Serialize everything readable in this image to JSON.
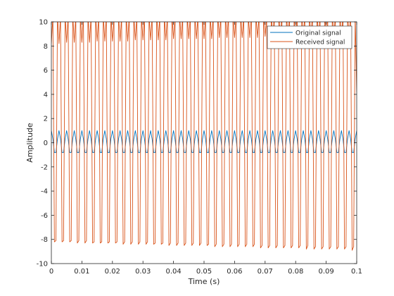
{
  "chart_data": {
    "type": "line",
    "title": "",
    "xlabel": "Time (s)",
    "ylabel": "Amplitude",
    "xlim": [
      0,
      0.1
    ],
    "ylim": [
      -10,
      10
    ],
    "xticks": [
      "0",
      "0.01",
      "0.02",
      "0.03",
      "0.04",
      "0.05",
      "0.06",
      "0.07",
      "0.08",
      "0.09",
      "0.1"
    ],
    "yticks": [
      "-10",
      "-8",
      "-6",
      "-4",
      "-2",
      "0",
      "2",
      "4",
      "6",
      "8",
      "10"
    ],
    "grid": false,
    "legend_position": "top-right",
    "x": [
      0,
      0.0005,
      0.001,
      0.0015,
      0.002,
      0.0025,
      0.003,
      0.0035,
      0.004,
      0.0045,
      0.005,
      0.0055,
      0.006,
      0.0065,
      0.007,
      0.0075,
      0.008,
      0.0085,
      0.009,
      0.0095,
      0.01,
      0.0105,
      0.011,
      0.0115,
      0.012,
      0.0125,
      0.013,
      0.0135,
      0.014,
      0.0145,
      0.015,
      0.0155,
      0.016,
      0.0165,
      0.017,
      0.0175,
      0.018,
      0.0185,
      0.019,
      0.0195,
      0.02,
      0.0205,
      0.021,
      0.0215,
      0.022,
      0.0225,
      0.023,
      0.0235,
      0.024,
      0.0245,
      0.025,
      0.0255,
      0.026,
      0.0265,
      0.027,
      0.0275,
      0.028,
      0.0285,
      0.029,
      0.0295,
      0.03,
      0.0305,
      0.031,
      0.0315,
      0.032,
      0.0325,
      0.033,
      0.0335,
      0.034,
      0.0345,
      0.035,
      0.0355,
      0.036,
      0.0365,
      0.037,
      0.0375,
      0.038,
      0.0385,
      0.039,
      0.0395,
      0.04,
      0.0405,
      0.041,
      0.0415,
      0.042,
      0.0425,
      0.043,
      0.0435,
      0.044,
      0.0445,
      0.045,
      0.0455,
      0.046,
      0.0465,
      0.047,
      0.0475,
      0.048,
      0.0485,
      0.049,
      0.0495,
      0.05,
      0.0505,
      0.051,
      0.0515,
      0.052,
      0.0525,
      0.053,
      0.0535,
      0.054,
      0.0545,
      0.055,
      0.0555,
      0.056,
      0.0565,
      0.057,
      0.0575,
      0.058,
      0.0585,
      0.059,
      0.0595,
      0.06,
      0.0605,
      0.061,
      0.0615,
      0.062,
      0.0625,
      0.063,
      0.0635,
      0.064,
      0.0645,
      0.065,
      0.0655,
      0.066,
      0.0665,
      0.067,
      0.0675,
      0.068,
      0.0685,
      0.069,
      0.0695,
      0.07,
      0.0705,
      0.071,
      0.0715,
      0.072,
      0.0725,
      0.073,
      0.0735,
      0.074,
      0.0745,
      0.075,
      0.0755,
      0.076,
      0.0765,
      0.077,
      0.0775,
      0.078,
      0.0785,
      0.079,
      0.0795,
      0.08,
      0.0805,
      0.081,
      0.0815,
      0.082,
      0.0825,
      0.083,
      0.0835,
      0.084,
      0.0845,
      0.085,
      0.0855,
      0.086,
      0.0865,
      0.087,
      0.0875,
      0.088,
      0.0885,
      0.089,
      0.0895,
      0.09,
      0.0905,
      0.091,
      0.0915,
      0.092,
      0.0925,
      0.093,
      0.0935,
      0.094,
      0.0945,
      0.095,
      0.0955,
      0.096,
      0.0965,
      0.097,
      0.0975,
      0.098,
      0.0985,
      0.099,
      0.0995,
      0.1
    ],
    "series": [
      {
        "name": "Original signal",
        "color": "#0072BD",
        "y": [
          1,
          0.31,
          -0.81,
          -0.81,
          0.31,
          1,
          0.31,
          -0.81,
          -0.81,
          0.31,
          1,
          0.31,
          -0.81,
          -0.81,
          0.31,
          1,
          0.31,
          -0.81,
          -0.81,
          0.31,
          1,
          0.31,
          -0.81,
          -0.81,
          0.31,
          1,
          0.31,
          -0.81,
          -0.81,
          0.31,
          1,
          0.31,
          -0.81,
          -0.81,
          0.31,
          1,
          0.31,
          -0.81,
          -0.81,
          0.31,
          1,
          0.31,
          -0.81,
          -0.81,
          0.31,
          1,
          0.31,
          -0.81,
          -0.81,
          0.31,
          1,
          0.31,
          -0.81,
          -0.81,
          0.31,
          1,
          0.31,
          -0.81,
          -0.81,
          0.31,
          1,
          0.31,
          -0.81,
          -0.81,
          0.31,
          1,
          0.31,
          -0.81,
          -0.81,
          0.31,
          1,
          0.31,
          -0.81,
          -0.81,
          0.31,
          1,
          0.31,
          -0.81,
          -0.81,
          0.31,
          1,
          0.31,
          -0.81,
          -0.81,
          0.31,
          1,
          0.31,
          -0.81,
          -0.81,
          0.31,
          1,
          0.31,
          -0.81,
          -0.81,
          0.31,
          1,
          0.31,
          -0.81,
          -0.81,
          0.31,
          1,
          0.31,
          -0.81,
          -0.81,
          0.31,
          1,
          0.31,
          -0.81,
          -0.81,
          0.31,
          1,
          0.31,
          -0.81,
          -0.81,
          0.31,
          1,
          0.31,
          -0.81,
          -0.81,
          0.31,
          1,
          0.31,
          -0.81,
          -0.81,
          0.31,
          1,
          0.31,
          -0.81,
          -0.81,
          0.31,
          1,
          0.31,
          -0.81,
          -0.81,
          0.31,
          1,
          0.31,
          -0.81,
          -0.81,
          0.31,
          1,
          0.31,
          -0.81,
          -0.81,
          0.31,
          1,
          0.31,
          -0.81,
          -0.81,
          0.31,
          1,
          0.31,
          -0.81,
          -0.81,
          0.31,
          1,
          0.31,
          -0.81,
          -0.81,
          0.31,
          1,
          0.31,
          -0.81,
          -0.81,
          0.31,
          1,
          0.31,
          -0.81,
          -0.81,
          0.31,
          1,
          0.31,
          -0.81,
          -0.81,
          0.31,
          1,
          0.31,
          -0.81,
          -0.81,
          0.31,
          1,
          0.31,
          -0.81,
          -0.81,
          0.31,
          1,
          0.31,
          -0.81,
          -0.81,
          0.31,
          1,
          0.31,
          -0.81,
          -0.81,
          0.31,
          1,
          0.31,
          -0.81,
          -0.81,
          0.31,
          1
        ]
      },
      {
        "name": "Received signal",
        "color": "#D95319",
        "y": [
          8.2,
          10.5,
          -8.2,
          -8.1,
          10.6,
          8.2,
          10.5,
          -8.2,
          -8.1,
          10.6,
          8.3,
          10.5,
          -8.2,
          -8.1,
          10.6,
          8.3,
          10.5,
          -8.3,
          -8.1,
          10.6,
          8.3,
          10.5,
          -8.3,
          -8.1,
          10.6,
          8.3,
          10.5,
          -8.3,
          -8.2,
          10.6,
          8.4,
          10.5,
          -8.3,
          -8.2,
          10.6,
          8.4,
          10.5,
          -8.3,
          -8.2,
          10.6,
          8.4,
          10.5,
          -8.3,
          -8.2,
          10.6,
          8.4,
          10.5,
          -8.4,
          -8.2,
          10.6,
          8.4,
          10.5,
          -8.4,
          -8.2,
          10.6,
          8.5,
          10.5,
          -8.4,
          -8.2,
          10.6,
          8.5,
          10.5,
          -8.4,
          -8.2,
          10.6,
          8.5,
          10.5,
          -8.4,
          -8.3,
          10.6,
          8.5,
          10.5,
          -8.4,
          -8.3,
          10.6,
          8.5,
          10.5,
          -8.5,
          -8.3,
          10.6,
          8.6,
          10.5,
          -8.5,
          -8.3,
          10.6,
          8.6,
          10.5,
          -8.5,
          -8.3,
          10.6,
          8.6,
          10.5,
          -8.5,
          -8.3,
          10.6,
          8.6,
          10.5,
          -8.5,
          -8.3,
          10.6,
          8.6,
          10.5,
          -8.5,
          -8.4,
          10.6,
          8.6,
          10.5,
          -8.6,
          -8.4,
          10.6,
          8.7,
          10.5,
          -8.6,
          -8.4,
          10.6,
          8.7,
          10.5,
          -8.6,
          -8.4,
          10.6,
          8.7,
          10.5,
          -8.6,
          -8.4,
          10.6,
          8.7,
          10.5,
          -8.6,
          -8.4,
          10.6,
          8.7,
          10.5,
          -8.6,
          -8.4,
          10.6,
          8.7,
          10.5,
          -8.7,
          -8.5,
          10.6,
          8.8,
          10.5,
          -8.7,
          -8.5,
          10.6,
          8.8,
          10.5,
          -8.7,
          -8.5,
          10.6,
          8.8,
          10.5,
          -8.7,
          -8.5,
          10.6,
          8.8,
          10.5,
          -8.7,
          -8.5,
          10.6,
          8.8,
          10.5,
          -8.7,
          -8.5,
          10.6,
          8.9,
          10.5,
          -8.8,
          -8.5,
          10.6,
          8.9,
          10.5,
          -8.8,
          -8.6,
          10.6,
          8.9,
          10.5,
          -8.8,
          -8.6,
          10.6,
          8.9,
          10.5,
          -8.8,
          -8.6,
          10.6,
          8.9,
          10.5,
          -8.8,
          -8.6,
          10.6,
          8.9,
          10.5,
          -8.8,
          -8.6,
          10.6,
          9.0,
          10.5,
          -8.9,
          -8.6,
          10.6,
          4.2
        ]
      }
    ]
  }
}
